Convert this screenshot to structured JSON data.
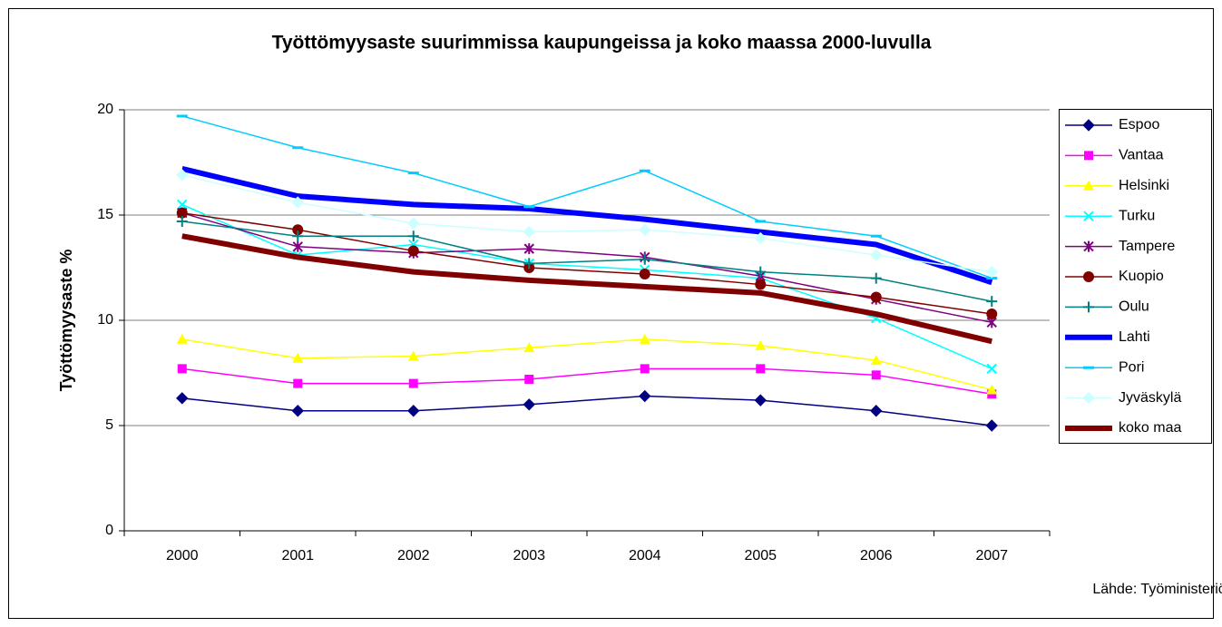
{
  "chart_data": {
    "type": "line",
    "title": "Työttömyysaste suurimmissa kaupungeissa ja koko maassa 2000-luvulla",
    "y_label": "Työttömyysaste %",
    "source": "Lähde: Työministeriö",
    "categories": [
      "2000",
      "2001",
      "2002",
      "2003",
      "2004",
      "2005",
      "2006",
      "2007"
    ],
    "ylim": [
      0,
      20
    ],
    "yticks": [
      0,
      5,
      10,
      15,
      20
    ],
    "grid": true,
    "legend": "right",
    "series": [
      {
        "name": "Espoo",
        "color": "#000080",
        "marker": "diamond",
        "line_width": 1.5,
        "values": [
          6.3,
          5.7,
          5.7,
          6.0,
          6.4,
          6.2,
          5.7,
          5.0
        ]
      },
      {
        "name": "Vantaa",
        "color": "#ff00ff",
        "marker": "square",
        "line_width": 1.5,
        "values": [
          7.7,
          7.0,
          7.0,
          7.2,
          7.7,
          7.7,
          7.4,
          6.5
        ]
      },
      {
        "name": "Helsinki",
        "color": "#ffff00",
        "marker": "triangle",
        "line_width": 1.5,
        "values": [
          9.1,
          8.2,
          8.3,
          8.7,
          9.1,
          8.8,
          8.1,
          6.7
        ]
      },
      {
        "name": "Turku",
        "color": "#00ffff",
        "marker": "x",
        "line_width": 1.5,
        "values": [
          15.5,
          13.1,
          13.6,
          12.7,
          12.4,
          12.0,
          10.1,
          7.7
        ]
      },
      {
        "name": "Tampere",
        "color": "#800080",
        "marker": "star",
        "line_width": 1.5,
        "values": [
          15.1,
          13.5,
          13.2,
          13.4,
          13.0,
          12.1,
          11.0,
          9.9
        ]
      },
      {
        "name": "Kuopio",
        "color": "#800000",
        "marker": "circle",
        "line_width": 1.5,
        "values": [
          15.1,
          14.3,
          13.3,
          12.5,
          12.2,
          11.7,
          11.1,
          10.3
        ]
      },
      {
        "name": "Oulu",
        "color": "#008080",
        "marker": "plus",
        "line_width": 1.5,
        "values": [
          14.7,
          14.0,
          14.0,
          12.7,
          12.9,
          12.3,
          12.0,
          10.9
        ]
      },
      {
        "name": "Lahti",
        "color": "#0000ff",
        "marker": "none",
        "line_width": 6,
        "values": [
          17.2,
          15.9,
          15.5,
          15.3,
          14.8,
          14.2,
          13.6,
          11.8
        ]
      },
      {
        "name": "Pori",
        "color": "#00ccff",
        "marker": "dash",
        "line_width": 1.5,
        "values": [
          19.7,
          18.2,
          17.0,
          15.4,
          17.1,
          14.7,
          14.0,
          12.0
        ]
      },
      {
        "name": "Jyväskylä",
        "color": "#ccffff",
        "marker": "diamond",
        "line_width": 1.5,
        "values": [
          16.9,
          15.6,
          14.6,
          14.2,
          14.3,
          13.9,
          13.1,
          12.3
        ]
      },
      {
        "name": "koko maa",
        "color": "#800000",
        "marker": "none",
        "line_width": 6,
        "values": [
          14.0,
          13.0,
          12.3,
          11.9,
          11.6,
          11.3,
          10.3,
          9.0
        ]
      }
    ]
  }
}
